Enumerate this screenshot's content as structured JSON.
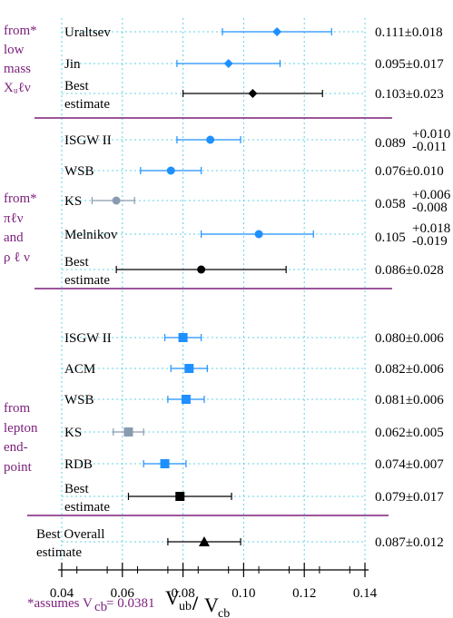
{
  "chart_data": {
    "type": "scatter",
    "xlim": [
      0.04,
      0.14
    ],
    "xticks": [
      "0.04",
      "0.06",
      "0.08",
      "0.10",
      "0.12",
      "0.14"
    ],
    "xlabel": {
      "main": "V",
      "sub1": "ub",
      "slash": "/",
      "main2": "V",
      "sub2": "cb"
    },
    "grid": true,
    "groups": [
      {
        "label_lines": [
          "from*",
          "low",
          "mass",
          "Xᵤℓν"
        ]
      },
      {
        "label_lines": [
          "from*",
          "πℓν",
          "and",
          "ρ ℓ ν"
        ]
      },
      {
        "label_lines": [
          "from",
          "lepton",
          "end-",
          "point"
        ]
      }
    ],
    "rows": [
      {
        "label": [
          "Uraltsev"
        ],
        "value": 0.111,
        "lo": 0.093,
        "hi": 0.129,
        "marker": "diamond",
        "color": "#1e90ff",
        "value_text": "0.111±0.018",
        "group": 0
      },
      {
        "label": [
          "Jin"
        ],
        "value": 0.095,
        "lo": 0.078,
        "hi": 0.112,
        "marker": "diamond",
        "color": "#1e90ff",
        "value_text": "0.095±0.017",
        "group": 0
      },
      {
        "label": [
          "Best",
          "estimate"
        ],
        "value": 0.103,
        "lo": 0.08,
        "hi": 0.126,
        "marker": "diamond",
        "color": "#000000",
        "value_text": "0.103±0.023",
        "group": 0
      },
      {
        "label": [
          "ISGW II"
        ],
        "value": 0.089,
        "lo": 0.078,
        "hi": 0.099,
        "marker": "circle",
        "color": "#1e90ff",
        "value_main": "0.089",
        "value_sup": "+0.010",
        "value_sub": "-0.011",
        "group": 1
      },
      {
        "label": [
          "WSB"
        ],
        "value": 0.076,
        "lo": 0.066,
        "hi": 0.086,
        "marker": "circle",
        "color": "#1e90ff",
        "value_text": "0.076±0.010",
        "group": 1
      },
      {
        "label": [
          "KS"
        ],
        "value": 0.058,
        "lo": 0.05,
        "hi": 0.064,
        "marker": "circle",
        "color": "#8a9bb0",
        "value_main": "0.058",
        "value_sup": "+0.006",
        "value_sub": "-0.008",
        "group": 1
      },
      {
        "label": [
          "Melnikov"
        ],
        "value": 0.105,
        "lo": 0.086,
        "hi": 0.123,
        "marker": "circle",
        "color": "#1e90ff",
        "value_main": "0.105",
        "value_sup": "+0.018",
        "value_sub": "-0.019",
        "group": 1
      },
      {
        "label": [
          "Best",
          "estimate"
        ],
        "value": 0.086,
        "lo": 0.058,
        "hi": 0.114,
        "marker": "circle",
        "color": "#000000",
        "value_text": "0.086±0.028",
        "group": 1
      },
      {
        "label": [
          "ISGW II"
        ],
        "value": 0.08,
        "lo": 0.074,
        "hi": 0.086,
        "marker": "square",
        "color": "#1e90ff",
        "value_text": "0.080±0.006",
        "group": 2
      },
      {
        "label": [
          "ACM"
        ],
        "value": 0.082,
        "lo": 0.076,
        "hi": 0.088,
        "marker": "square",
        "color": "#1e90ff",
        "value_text": "0.082±0.006",
        "group": 2
      },
      {
        "label": [
          "WSB"
        ],
        "value": 0.081,
        "lo": 0.075,
        "hi": 0.087,
        "marker": "square",
        "color": "#1e90ff",
        "value_text": "0.081±0.006",
        "group": 2
      },
      {
        "label": [
          "KS"
        ],
        "value": 0.062,
        "lo": 0.057,
        "hi": 0.067,
        "marker": "square",
        "color": "#8a9bb0",
        "value_text": "0.062±0.005",
        "group": 2
      },
      {
        "label": [
          "RDB"
        ],
        "value": 0.074,
        "lo": 0.067,
        "hi": 0.081,
        "marker": "square",
        "color": "#1e90ff",
        "value_text": "0.074±0.007",
        "group": 2
      },
      {
        "label": [
          "Best",
          "estimate"
        ],
        "value": 0.079,
        "lo": 0.062,
        "hi": 0.096,
        "marker": "square",
        "color": "#000000",
        "value_text": "0.079±0.017",
        "group": 2
      },
      {
        "label": [
          "Best Overall",
          "estimate"
        ],
        "value": 0.087,
        "lo": 0.075,
        "hi": 0.099,
        "marker": "triangle",
        "color": "#000000",
        "value_text": "0.087±0.012",
        "group": 3
      }
    ],
    "footnote": {
      "text": "*assumes V",
      "sub": "cb",
      "tail": " = 0.0381"
    },
    "colors": {
      "separator": "#7a1f7a",
      "grid": "#5fd3e8",
      "label_accent": "#7a1f7a"
    }
  }
}
